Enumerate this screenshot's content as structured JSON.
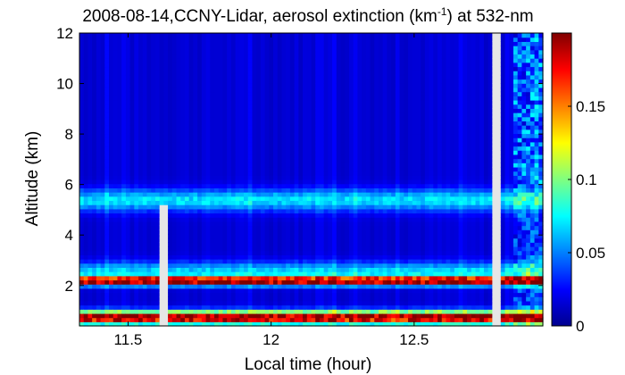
{
  "chart_data": {
    "type": "heatmap",
    "title_parts": {
      "before": "2008-08-14,CCNY-Lidar, aerosol extinction (km",
      "superscript": "-1",
      "after": ") at 532-nm"
    },
    "xlabel": "Local time (hour)",
    "ylabel": "Altitude (km)",
    "xlim": [
      11.33,
      12.95
    ],
    "ylim": [
      0.4,
      12
    ],
    "x_ticks": [
      {
        "value": 11.5,
        "label": "11.5"
      },
      {
        "value": 12,
        "label": "12"
      },
      {
        "value": 12.5,
        "label": "12.5"
      }
    ],
    "y_ticks": [
      {
        "value": 2,
        "label": "2"
      },
      {
        "value": 4,
        "label": "4"
      },
      {
        "value": 6,
        "label": "6"
      },
      {
        "value": 8,
        "label": "8"
      },
      {
        "value": 10,
        "label": "10"
      },
      {
        "value": 12,
        "label": "12"
      }
    ],
    "colorbar": {
      "range": [
        0,
        0.2
      ],
      "colormap": "jet",
      "ticks": [
        {
          "value": 0,
          "label": "0"
        },
        {
          "value": 0.05,
          "label": "0.05"
        },
        {
          "value": 0.1,
          "label": "0.1"
        },
        {
          "value": 0.15,
          "label": "0.15"
        }
      ]
    },
    "background_extinction": 0.015,
    "layers": [
      {
        "altitude_km": 0.75,
        "width_km": 0.18,
        "extinction": 0.19
      },
      {
        "altitude_km": 2.2,
        "width_km": 0.12,
        "extinction": 0.19
      },
      {
        "altitude_km": 2.6,
        "width_km": 0.25,
        "extinction": 0.05
      },
      {
        "altitude_km": 5.4,
        "width_km": 0.3,
        "extinction": 0.055
      }
    ],
    "data_gaps_hours": [
      {
        "start": 11.615,
        "end": 11.645,
        "from_altitude_km": 0.4,
        "to_altitude_km": 5.2
      },
      {
        "start": 12.775,
        "end": 12.805,
        "from_altitude_km": 0.4,
        "to_altitude_km": 12
      }
    ]
  }
}
